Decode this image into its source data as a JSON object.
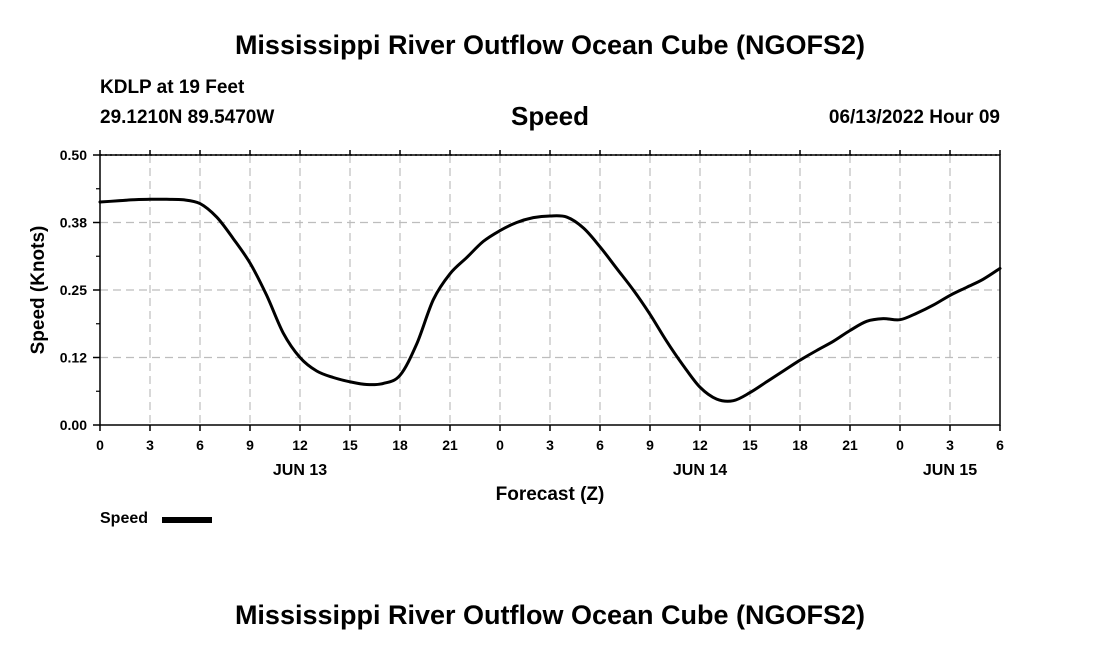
{
  "header": {
    "title": "Mississippi River Outflow Ocean Cube (NGOFS2)",
    "station": "KDLP at 19 Feet",
    "coords": "29.1210N  89.5470W",
    "variable": "Speed",
    "datetime": "06/13/2022 Hour 09"
  },
  "footer": {
    "title": "Mississippi River Outflow Ocean Cube (NGOFS2)"
  },
  "chart_data": {
    "type": "line",
    "title": "Speed",
    "xlabel": "Forecast (Z)",
    "ylabel": "Speed (Knots)",
    "ylim": [
      0,
      0.5
    ],
    "xlim": [
      0,
      54
    ],
    "grid": true,
    "legend_placement": "bottom-left",
    "y_ticks": [
      "0.00",
      "0.12",
      "0.25",
      "0.38",
      "0.50"
    ],
    "x_ticks": [
      "0",
      "3",
      "6",
      "9",
      "12",
      "15",
      "18",
      "21",
      "0",
      "3",
      "6",
      "9",
      "12",
      "15",
      "18",
      "21",
      "0",
      "3",
      "6"
    ],
    "day_labels": [
      {
        "label": "JUN 13",
        "at_hour": 12
      },
      {
        "label": "JUN 14",
        "at_hour": 36
      },
      {
        "label": "JUN 15",
        "at_hour": 51
      }
    ],
    "series": [
      {
        "name": "Speed",
        "color": "#000000",
        "x": [
          0,
          1,
          2,
          3,
          4,
          5,
          6,
          7,
          8,
          9,
          10,
          11,
          12,
          13,
          14,
          15,
          16,
          17,
          18,
          19,
          20,
          21,
          22,
          23,
          24,
          25,
          26,
          27,
          28,
          29,
          30,
          31,
          32,
          33,
          34,
          35,
          36,
          37,
          38,
          39,
          40,
          41,
          42,
          43,
          44,
          45,
          46,
          47,
          48,
          49,
          50,
          51,
          52,
          53,
          54
        ],
        "y": [
          0.413,
          0.415,
          0.417,
          0.418,
          0.418,
          0.417,
          0.41,
          0.385,
          0.345,
          0.3,
          0.24,
          0.17,
          0.125,
          0.1,
          0.088,
          0.08,
          0.075,
          0.077,
          0.092,
          0.15,
          0.232,
          0.28,
          0.31,
          0.34,
          0.36,
          0.375,
          0.384,
          0.387,
          0.385,
          0.365,
          0.33,
          0.29,
          0.25,
          0.205,
          0.155,
          0.11,
          0.07,
          0.048,
          0.045,
          0.06,
          0.08,
          0.1,
          0.12,
          0.138,
          0.155,
          0.175,
          0.192,
          0.197,
          0.195,
          0.207,
          0.222,
          0.24,
          0.255,
          0.27,
          0.29
        ]
      }
    ]
  }
}
